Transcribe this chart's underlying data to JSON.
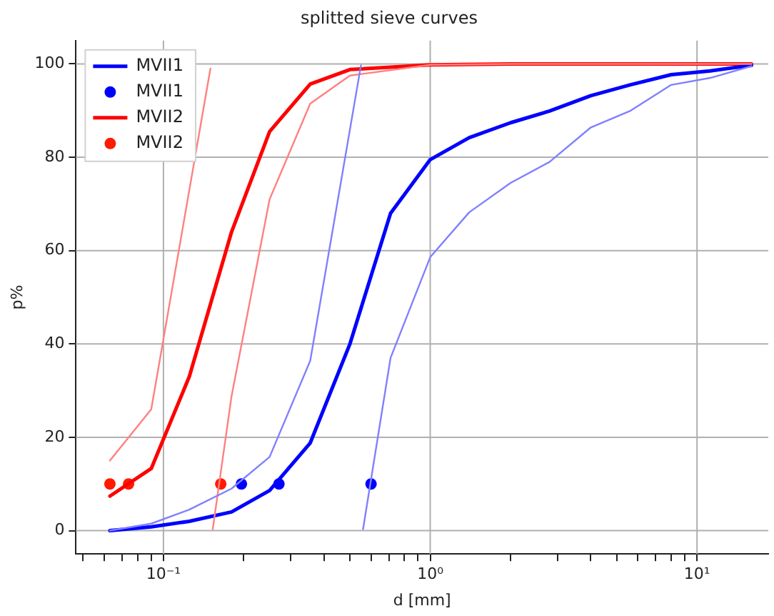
{
  "chart_data": {
    "type": "line",
    "title": "splitted sieve curves",
    "xlabel": "d [mm]",
    "ylabel": "p%",
    "log": "x",
    "grid": true,
    "legend": "top left",
    "xlim": [
      0.047,
      18.5
    ],
    "ylim": [
      -5,
      105
    ],
    "xticks": [
      {
        "value": 0.05,
        "label": null
      },
      {
        "value": 0.06,
        "label": null
      },
      {
        "value": 0.07,
        "label": null
      },
      {
        "value": 0.08,
        "label": null
      },
      {
        "value": 0.09,
        "label": null
      },
      {
        "value": 0.1,
        "label": "10⁻¹"
      },
      {
        "value": 0.2,
        "label": null
      },
      {
        "value": 0.3,
        "label": null
      },
      {
        "value": 0.4,
        "label": null
      },
      {
        "value": 0.5,
        "label": null
      },
      {
        "value": 0.6,
        "label": null
      },
      {
        "value": 0.7,
        "label": null
      },
      {
        "value": 0.8,
        "label": null
      },
      {
        "value": 0.9,
        "label": null
      },
      {
        "value": 1,
        "label": "10⁰"
      },
      {
        "value": 2,
        "label": null
      },
      {
        "value": 3,
        "label": null
      },
      {
        "value": 4,
        "label": null
      },
      {
        "value": 5,
        "label": null
      },
      {
        "value": 6,
        "label": null
      },
      {
        "value": 7,
        "label": null
      },
      {
        "value": 8,
        "label": null
      },
      {
        "value": 9,
        "label": null
      },
      {
        "value": 10,
        "label": "10¹"
      }
    ],
    "yticks": [
      0,
      20,
      40,
      60,
      80,
      100
    ],
    "series": [
      {
        "marker": "none",
        "color": "#8080ff",
        "x": [
          0.063,
          0.09,
          0.125,
          0.18,
          0.25,
          0.355,
          0.55
        ],
        "values": [
          0,
          1.5,
          4.5,
          9,
          15.8,
          36.4,
          99.7
        ]
      },
      {
        "marker": "none",
        "color": "#8080ff",
        "x": [
          0.56,
          0.71,
          1,
          1.4,
          2,
          2.8,
          4,
          5.6,
          8,
          11.2,
          16
        ],
        "values": [
          0.3,
          37,
          58.6,
          68.2,
          74.5,
          79,
          86.4,
          89.9,
          95.5,
          97,
          99.5
        ]
      },
      {
        "marker": "none",
        "color": "#ff8080",
        "x": [
          0.063,
          0.09,
          0.15
        ],
        "values": [
          15,
          26,
          99
        ]
      },
      {
        "marker": "none",
        "color": "#ff8080",
        "x": [
          0.153,
          0.18,
          0.25,
          0.355,
          0.5,
          1,
          2,
          4,
          8,
          16
        ],
        "values": [
          0.3,
          28.8,
          71,
          91.5,
          97.5,
          99.8,
          100,
          100,
          100,
          100
        ]
      },
      {
        "name": "MVII1",
        "marker": "none",
        "color": "#0000ff",
        "x": [
          0.063,
          0.09,
          0.125,
          0.18,
          0.25,
          0.355,
          0.5,
          0.71,
          1,
          1.4,
          2,
          2.8,
          4,
          5.6,
          8,
          11.2,
          16
        ],
        "values": [
          0,
          0.8,
          2,
          4,
          8.6,
          18.8,
          40,
          68,
          79.5,
          84.2,
          87.4,
          89.9,
          93.2,
          95.5,
          97.7,
          98.5,
          99.7
        ]
      },
      {
        "name": "MVII1",
        "type": "scatter",
        "marker": "circle",
        "color": "#0000ff",
        "x": [
          0.196,
          0.271,
          0.6
        ],
        "values": [
          10,
          10,
          10
        ]
      },
      {
        "name": "MVII2",
        "marker": "none",
        "color": "#ff0000",
        "x": [
          0.063,
          0.09,
          0.125,
          0.18,
          0.25,
          0.355,
          0.5,
          1,
          2,
          4,
          8,
          16
        ],
        "values": [
          7.4,
          13.3,
          33,
          64,
          85.5,
          95.7,
          98.8,
          99.8,
          100,
          100,
          100,
          100
        ]
      },
      {
        "name": "MVII2",
        "type": "scatter",
        "marker": "circle",
        "color": "#ff1a00",
        "x": [
          0.063,
          0.074,
          0.164
        ],
        "values": [
          10,
          10,
          10
        ]
      }
    ]
  }
}
